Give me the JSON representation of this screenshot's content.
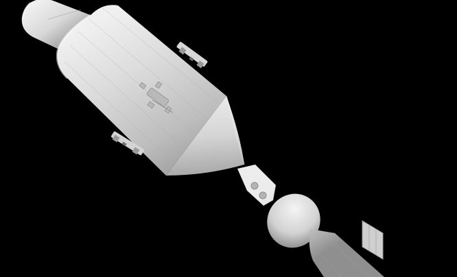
{
  "scene": {
    "background": "#000000",
    "subject_color": "#c9c9c9",
    "shadow_color": "#5e5e5e",
    "highlight_color": "#efefef"
  }
}
